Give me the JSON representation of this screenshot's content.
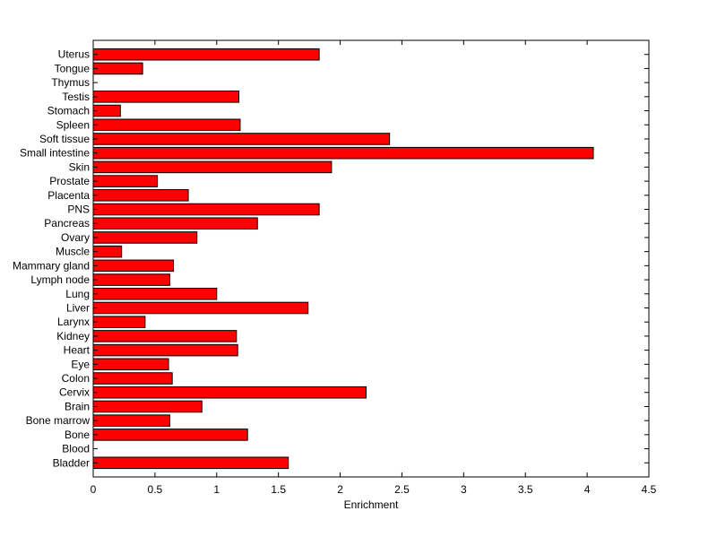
{
  "chart_data": {
    "type": "bar",
    "orientation": "horizontal",
    "title": "",
    "xlabel": "Enrichment",
    "ylabel": "",
    "xlim": [
      0,
      4.5
    ],
    "xticks": [
      "0",
      "0.5",
      "1",
      "1.5",
      "2",
      "2.5",
      "3",
      "3.5",
      "4",
      "4.5"
    ],
    "grid": false,
    "bar_color": "#ff0000",
    "categories": [
      "Uterus",
      "Tongue",
      "Thymus",
      "Testis",
      "Stomach",
      "Spleen",
      "Soft tissue",
      "Small intestine",
      "Skin",
      "Prostate",
      "Placenta",
      "PNS",
      "Pancreas",
      "Ovary",
      "Muscle",
      "Mammary gland",
      "Lymph node",
      "Lung",
      "Liver",
      "Larynx",
      "Kidney",
      "Heart",
      "Eye",
      "Colon",
      "Cervix",
      "Brain",
      "Bone marrow",
      "Bone",
      "Blood",
      "Bladder"
    ],
    "values": [
      1.83,
      0.4,
      0,
      1.18,
      0.22,
      1.19,
      2.4,
      4.05,
      1.93,
      0.52,
      0.77,
      1.83,
      1.33,
      0.84,
      0.23,
      0.65,
      0.62,
      1.0,
      1.74,
      0.42,
      1.16,
      1.17,
      0.61,
      0.64,
      2.21,
      0.88,
      0.62,
      1.25,
      0,
      1.58
    ]
  }
}
